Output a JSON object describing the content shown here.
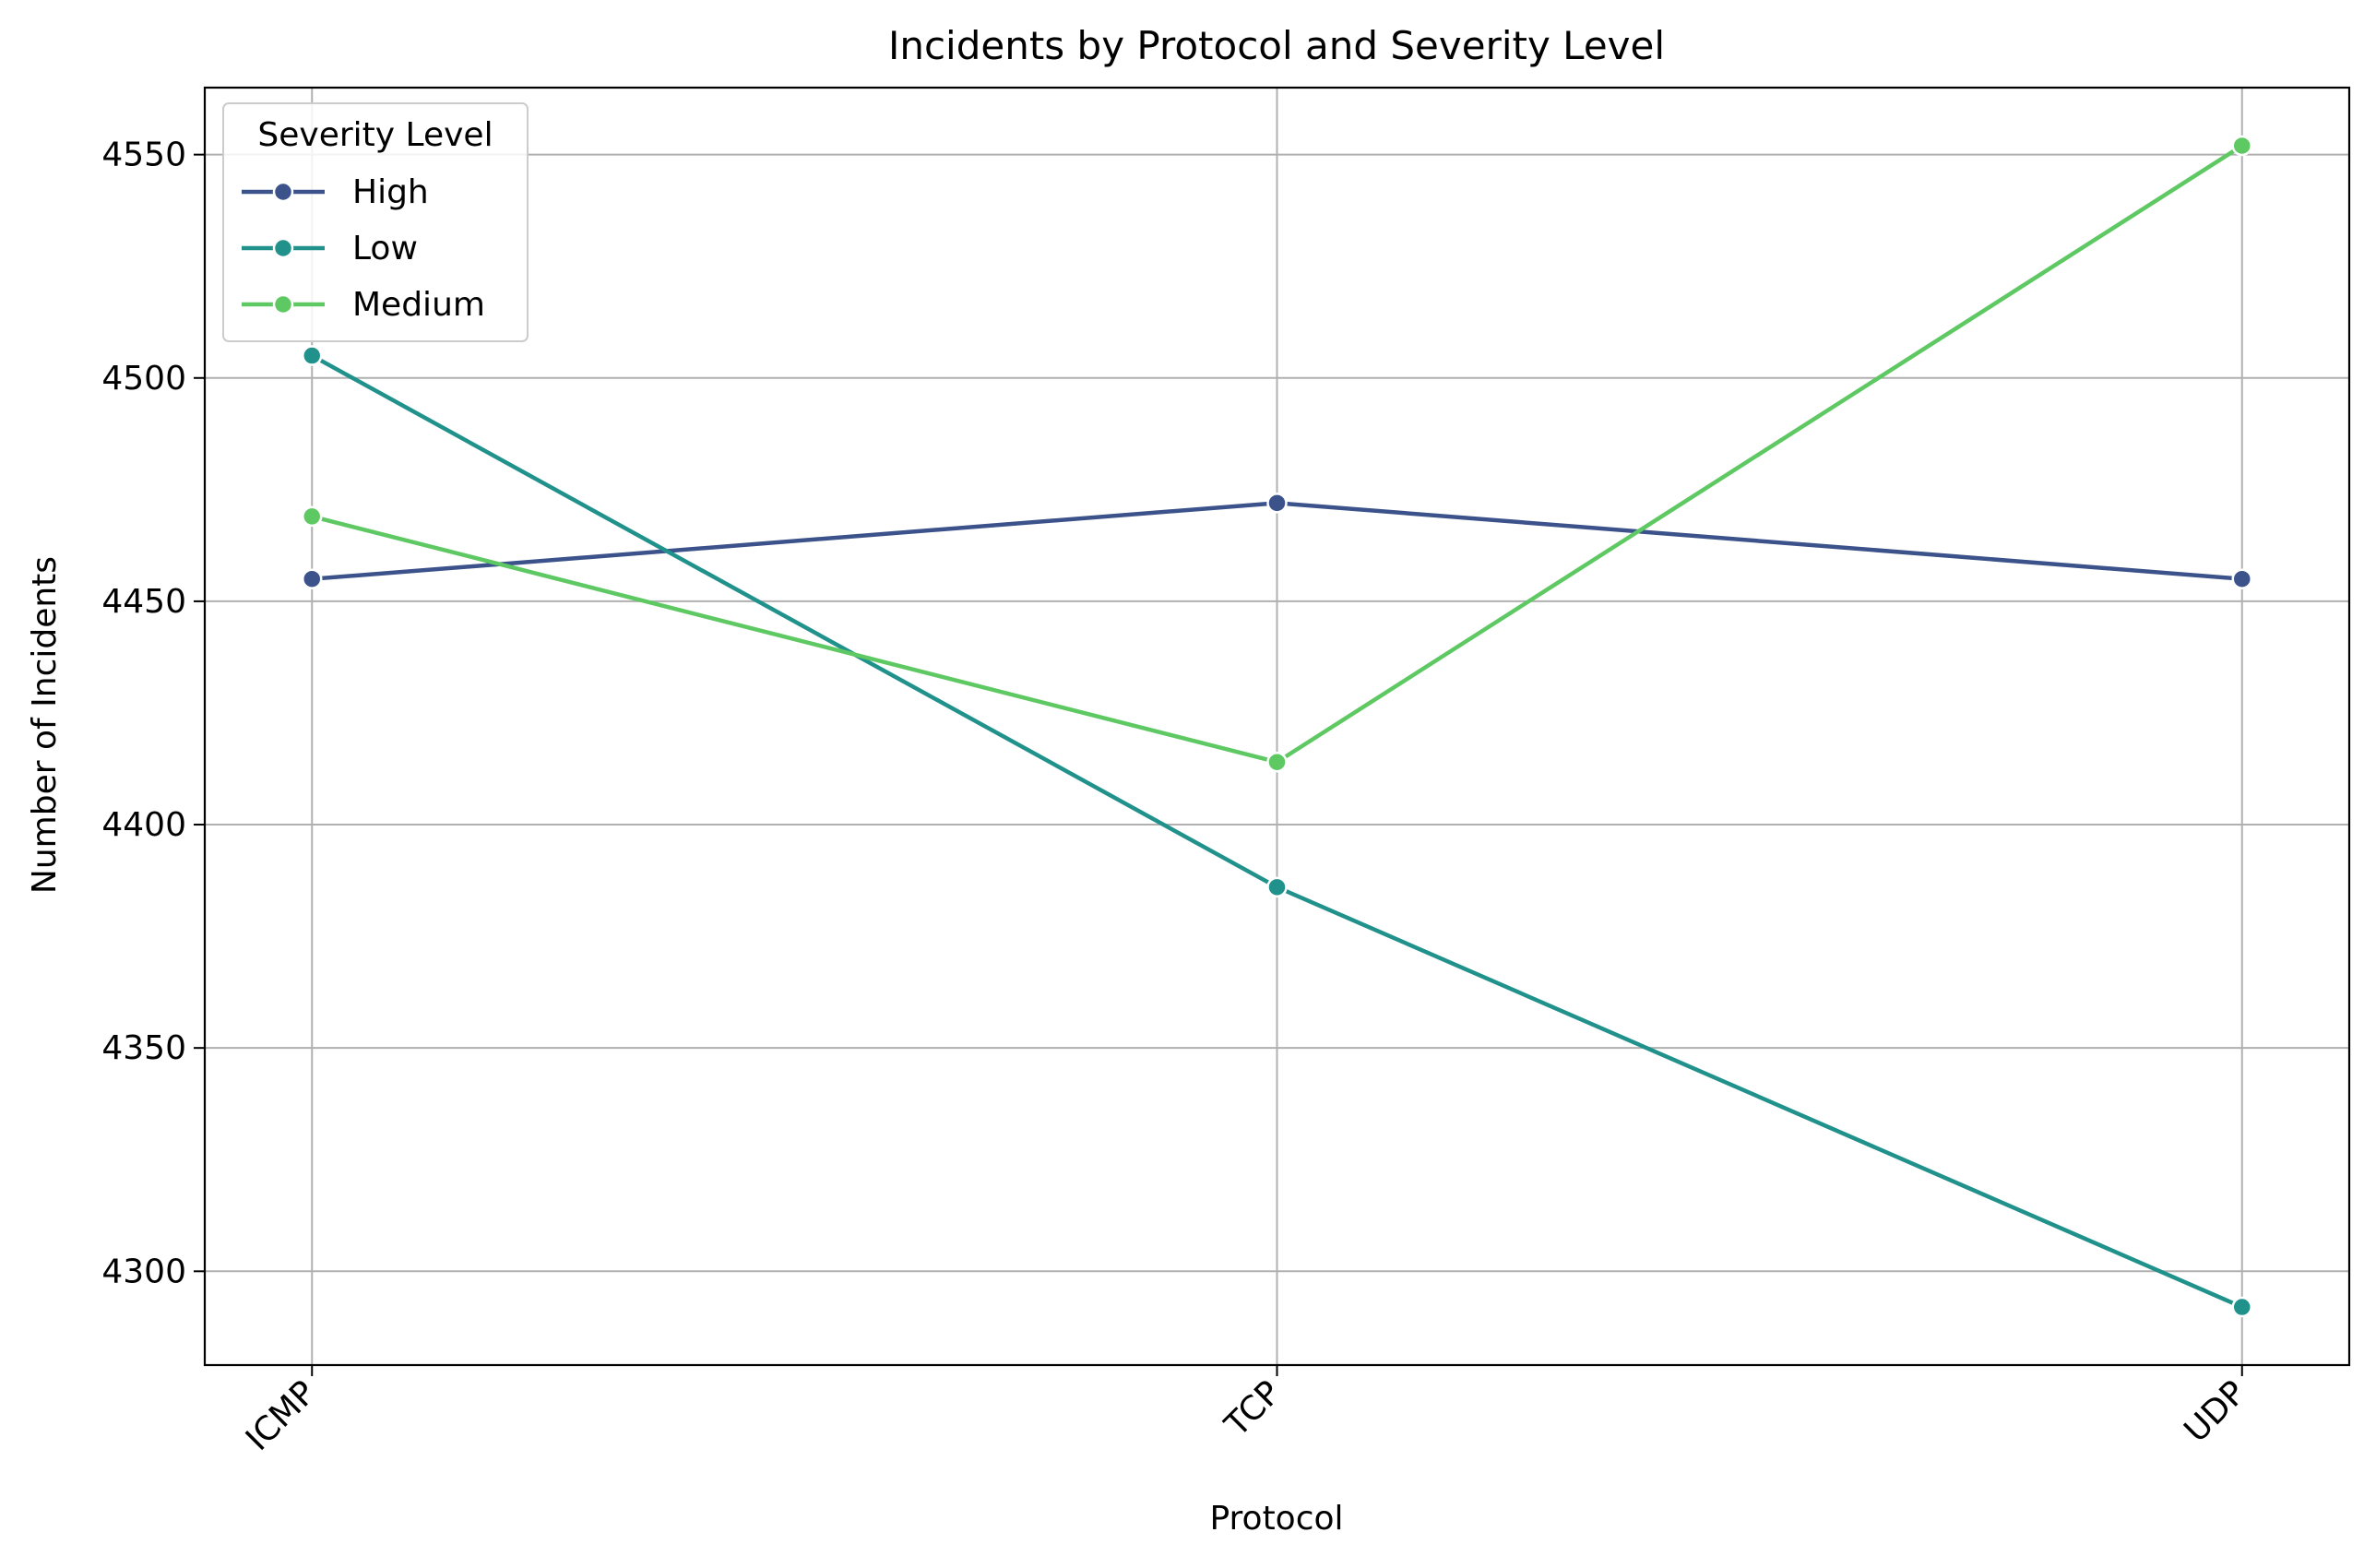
{
  "chart_data": {
    "type": "line",
    "title": "Incidents by Protocol and Severity Level",
    "xlabel": "Protocol",
    "ylabel": "Number of Incidents",
    "categories": [
      "ICMP",
      "TCP",
      "UDP"
    ],
    "ylim": [
      4279,
      4565
    ],
    "yticks": [
      4300,
      4350,
      4400,
      4450,
      4500,
      4550
    ],
    "grid": true,
    "legend": {
      "title": "Severity Level",
      "placement": "top-left"
    },
    "series": [
      {
        "name": "High",
        "color": "#3b528b",
        "values": [
          4455,
          4472,
          4455
        ]
      },
      {
        "name": "Low",
        "color": "#21918c",
        "values": [
          4505,
          4386,
          4292
        ]
      },
      {
        "name": "Medium",
        "color": "#5ec962",
        "values": [
          4469,
          4414,
          4552
        ]
      }
    ]
  }
}
